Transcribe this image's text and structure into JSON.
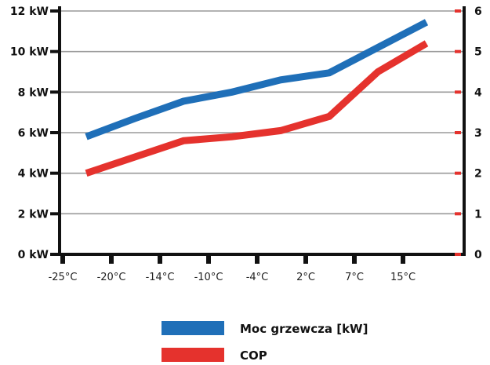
{
  "chart_data": {
    "type": "line",
    "x_tick_labels": [
      "-25°C",
      "-20°C",
      "-14°C",
      "-10°C",
      "-4°C",
      "2°C",
      "7°C",
      "15°C"
    ],
    "y_left": {
      "tick_labels": [
        "0 kW",
        "2 kW",
        "4 kW",
        "6 kW",
        "8 kW",
        "10 kW",
        "12 kW"
      ],
      "range": [
        0,
        12
      ]
    },
    "y_right": {
      "tick_labels": [
        "0",
        "1",
        "2",
        "3",
        "4",
        "5",
        "6"
      ],
      "range": [
        0,
        6
      ]
    },
    "grid": true,
    "legend_position": "bottom",
    "series": [
      {
        "name": "Moc grzewcza [kW]",
        "axis": "left",
        "color": "#1f6fb8",
        "points": [
          {
            "x": -25,
            "y": 5.8
          },
          {
            "x": -20,
            "y": 6.7
          },
          {
            "x": -14,
            "y": 7.55
          },
          {
            "x": -10,
            "y": 8.0
          },
          {
            "x": -4,
            "y": 8.6
          },
          {
            "x": 2,
            "y": 8.95
          },
          {
            "x": 7,
            "y": 10.2
          },
          {
            "x": 15,
            "y": 11.45
          }
        ]
      },
      {
        "name": "COP",
        "axis": "right",
        "color": "#e5322d",
        "points": [
          {
            "x": -25,
            "y": 2.0
          },
          {
            "x": -20,
            "y": 2.4
          },
          {
            "x": -14,
            "y": 2.8
          },
          {
            "x": -10,
            "y": 2.9
          },
          {
            "x": -4,
            "y": 3.05
          },
          {
            "x": 2,
            "y": 3.4
          },
          {
            "x": 7,
            "y": 4.5
          },
          {
            "x": 15,
            "y": 5.2
          }
        ]
      }
    ]
  }
}
